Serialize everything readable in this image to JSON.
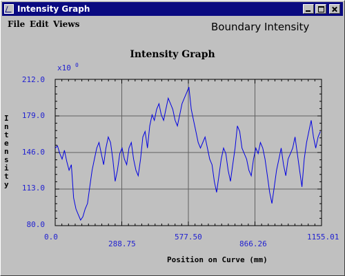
{
  "window": {
    "title": "Intensity Graph"
  },
  "menu": {
    "file": "File",
    "edit": "Edit",
    "views": "Views"
  },
  "header": {
    "label": "Boundary Intensity"
  },
  "chart_data": {
    "type": "line",
    "title": "Intensity Graph",
    "xlabel": "Position on Curve (mm)",
    "ylabel": "Intensity",
    "y_exponent_label": "x10",
    "y_exponent_power": "0",
    "xlim": [
      0.0,
      1155.01
    ],
    "ylim": [
      80.0,
      212.0
    ],
    "x_tick_labels": [
      "0.0",
      "288.75",
      "577.50",
      "866.26",
      "1155.01"
    ],
    "y_tick_labels": [
      "212.0",
      "179.0",
      "146.0",
      "113.0",
      "80.0"
    ],
    "grid": true,
    "colors": {
      "line": "#0000e0",
      "ticks": "#2020d0",
      "plot_bg": "#c0c0c0"
    },
    "series": [
      {
        "x": [
          0,
          10,
          20,
          30,
          40,
          50,
          60,
          70,
          80,
          90,
          100,
          110,
          120,
          130,
          140,
          150,
          160,
          170,
          180,
          190,
          200,
          210,
          220,
          230,
          240,
          250,
          260,
          270,
          280,
          290,
          300,
          310,
          320,
          330,
          340,
          350,
          360,
          370,
          380,
          390,
          400,
          410,
          420,
          430,
          440,
          450,
          460,
          470,
          480,
          490,
          500,
          510,
          520,
          530,
          540,
          550,
          560,
          570,
          580,
          590,
          600,
          610,
          620,
          630,
          640,
          650,
          660,
          670,
          680,
          690,
          700,
          710,
          720,
          730,
          740,
          750,
          760,
          770,
          780,
          790,
          800,
          810,
          820,
          830,
          840,
          850,
          860,
          870,
          880,
          890,
          900,
          910,
          920,
          930,
          940,
          950,
          960,
          970,
          980,
          990,
          1000,
          1010,
          1020,
          1030,
          1040,
          1050,
          1060,
          1070,
          1080,
          1090,
          1100,
          1110,
          1120,
          1130,
          1140,
          1150
        ],
        "values": [
          150,
          152,
          145,
          140,
          148,
          138,
          130,
          135,
          105,
          95,
          90,
          85,
          88,
          95,
          100,
          115,
          130,
          140,
          150,
          155,
          145,
          135,
          150,
          160,
          155,
          140,
          120,
          130,
          145,
          150,
          140,
          135,
          150,
          155,
          140,
          130,
          125,
          140,
          160,
          165,
          150,
          170,
          180,
          175,
          185,
          190,
          180,
          175,
          185,
          195,
          190,
          185,
          175,
          170,
          180,
          190,
          195,
          200,
          205,
          185,
          175,
          165,
          155,
          150,
          155,
          160,
          150,
          140,
          135,
          120,
          110,
          125,
          140,
          150,
          145,
          130,
          120,
          135,
          150,
          170,
          165,
          150,
          145,
          140,
          130,
          125,
          140,
          150,
          145,
          155,
          150,
          140,
          125,
          110,
          100,
          115,
          130,
          140,
          150,
          135,
          125,
          140,
          145,
          150,
          160,
          145,
          130,
          115,
          140,
          155,
          165,
          175,
          160,
          150,
          160,
          165
        ]
      }
    ]
  }
}
